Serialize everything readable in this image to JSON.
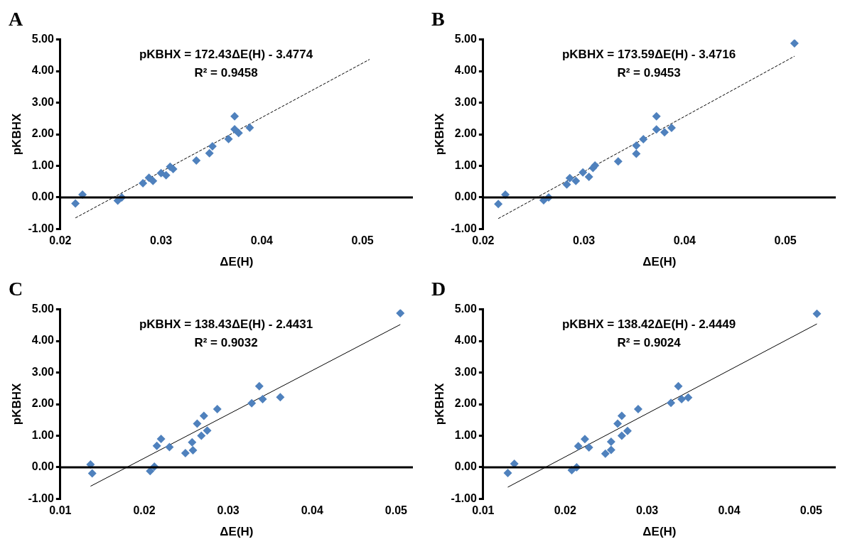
{
  "chart_data": [
    {
      "type": "scatter",
      "title": "A",
      "xlabel": "ΔE(H)",
      "ylabel": "pKBHX",
      "annotations": [
        "pKBHX = 172.43ΔE(H) - 3.4774",
        "R² = 0.9458"
      ],
      "xlim": [
        0.02,
        0.055
      ],
      "xticks": [
        0.02,
        0.03,
        0.04,
        0.05
      ],
      "ylim": [
        -1,
        5
      ],
      "yticks": [
        {
          "value": -1,
          "label": "-1.00"
        },
        {
          "value": 0,
          "label": "0.00"
        },
        {
          "value": 1,
          "label": "1.00"
        },
        {
          "value": 2,
          "label": "2.00"
        },
        {
          "value": 3,
          "label": "3.00"
        },
        {
          "value": 4,
          "label": "4.00"
        },
        {
          "value": 5,
          "label": "5.00"
        }
      ],
      "grid": false,
      "legend": false,
      "ref_lines": [
        {
          "axis": "y",
          "value": 0,
          "color": "#000000"
        }
      ],
      "series": [
        {
          "color": "#4f81bd",
          "marker": "diamond",
          "x": [
            0.0215,
            0.0222,
            0.0257,
            0.0261,
            0.0282,
            0.0288,
            0.0292,
            0.03,
            0.0305,
            0.0309,
            0.0312,
            0.0335,
            0.0348,
            0.0351,
            0.0367,
            0.0373,
            0.0373,
            0.0377,
            0.0388
          ],
          "values": [
            -0.19,
            0.09,
            -0.1,
            0.0,
            0.45,
            0.62,
            0.52,
            0.77,
            0.7,
            0.97,
            0.9,
            1.17,
            1.4,
            1.62,
            1.85,
            2.57,
            2.16,
            2.04,
            2.21
          ]
        },
        {
          "type": "line",
          "color": "#000000",
          "marker": "none",
          "line_style": "dashed",
          "x": [
            0.0215,
            0.0507
          ],
          "values": [
            -0.65,
            4.37
          ]
        }
      ]
    },
    {
      "type": "scatter",
      "title": "B",
      "xlabel": "ΔE(H)",
      "ylabel": "pKBHX",
      "annotations": [
        "pKBHX = 173.59ΔE(H) - 3.4716",
        "R² = 0.9453"
      ],
      "xlim": [
        0.02,
        0.055
      ],
      "xticks": [
        0.02,
        0.03,
        0.04,
        0.05
      ],
      "ylim": [
        -1,
        5
      ],
      "yticks": [
        {
          "value": -1,
          "label": "-1.00"
        },
        {
          "value": 0,
          "label": "0.00"
        },
        {
          "value": 1,
          "label": "1.00"
        },
        {
          "value": 2,
          "label": "2.00"
        },
        {
          "value": 3,
          "label": "3.00"
        },
        {
          "value": 4,
          "label": "4.00"
        },
        {
          "value": 5,
          "label": "5.00"
        }
      ],
      "grid": false,
      "legend": false,
      "ref_lines": [
        {
          "axis": "y",
          "value": 0,
          "color": "#000000"
        }
      ],
      "series": [
        {
          "color": "#4f81bd",
          "marker": "diamond",
          "x": [
            0.0215,
            0.0222,
            0.026,
            0.0265,
            0.0283,
            0.0286,
            0.0292,
            0.0299,
            0.0305,
            0.0309,
            0.0311,
            0.0334,
            0.0352,
            0.0352,
            0.0359,
            0.0372,
            0.0372,
            0.038,
            0.0387,
            0.0509
          ],
          "values": [
            -0.21,
            0.09,
            -0.09,
            0.0,
            0.41,
            0.61,
            0.52,
            0.79,
            0.65,
            0.93,
            1.01,
            1.14,
            1.38,
            1.64,
            1.84,
            2.57,
            2.15,
            2.06,
            2.2,
            4.88
          ]
        },
        {
          "type": "line",
          "color": "#000000",
          "marker": "none",
          "line_style": "dashed",
          "x": [
            0.0215,
            0.0509
          ],
          "values": [
            -0.67,
            4.47
          ]
        }
      ]
    },
    {
      "type": "scatter",
      "title": "C",
      "xlabel": "ΔE(H)",
      "ylabel": "pKBHX",
      "annotations": [
        "pKBHX = 138.43ΔE(H) - 2.4431",
        "R² = 0.9032"
      ],
      "xlim": [
        0.01,
        0.052
      ],
      "xticks": [
        0.01,
        0.02,
        0.03,
        0.04,
        0.05
      ],
      "ylim": [
        -1,
        5
      ],
      "yticks": [
        {
          "value": -1,
          "label": "-1.00"
        },
        {
          "value": 0,
          "label": "0.00"
        },
        {
          "value": 1,
          "label": "1.00"
        },
        {
          "value": 2,
          "label": "2.00"
        },
        {
          "value": 3,
          "label": "3.00"
        },
        {
          "value": 4,
          "label": "4.00"
        },
        {
          "value": 5,
          "label": "5.00"
        }
      ],
      "grid": false,
      "legend": false,
      "ref_lines": [
        {
          "axis": "y",
          "value": 0,
          "color": "#000000"
        }
      ],
      "series": [
        {
          "color": "#4f81bd",
          "marker": "diamond",
          "x": [
            0.0136,
            0.0138,
            0.0207,
            0.0212,
            0.0215,
            0.022,
            0.023,
            0.0249,
            0.0258,
            0.0257,
            0.0263,
            0.0268,
            0.0271,
            0.0275,
            0.0287,
            0.0328,
            0.0337,
            0.0341,
            0.0362,
            0.0505
          ],
          "values": [
            0.09,
            -0.19,
            -0.12,
            0.02,
            0.68,
            0.9,
            0.64,
            0.45,
            0.54,
            0.79,
            1.38,
            1.0,
            1.63,
            1.16,
            1.84,
            2.03,
            2.57,
            2.16,
            2.22,
            4.88
          ]
        },
        {
          "type": "line",
          "color": "#000000",
          "marker": "none",
          "line_style": "solid",
          "x": [
            0.0136,
            0.0505
          ],
          "values": [
            -0.6,
            4.52
          ]
        }
      ]
    },
    {
      "type": "scatter",
      "title": "D",
      "xlabel": "ΔE(H)",
      "ylabel": "pKBHX",
      "annotations": [
        "pKBHX = 138.42ΔE(H) - 2.4449",
        "R² = 0.9024"
      ],
      "xlim": [
        0.01,
        0.053
      ],
      "xticks": [
        0.01,
        0.02,
        0.03,
        0.04,
        0.05
      ],
      "ylim": [
        -1,
        5
      ],
      "yticks": [
        {
          "value": -1,
          "label": "-1.00"
        },
        {
          "value": 0,
          "label": "0.00"
        },
        {
          "value": 1,
          "label": "1.00"
        },
        {
          "value": 2,
          "label": "2.00"
        },
        {
          "value": 3,
          "label": "3.00"
        },
        {
          "value": 4,
          "label": "4.00"
        },
        {
          "value": 5,
          "label": "5.00"
        }
      ],
      "grid": false,
      "legend": false,
      "ref_lines": [
        {
          "axis": "y",
          "value": 0,
          "color": "#000000"
        }
      ],
      "series": [
        {
          "color": "#4f81bd",
          "marker": "diamond",
          "x": [
            0.013,
            0.0138,
            0.0208,
            0.0214,
            0.0216,
            0.0224,
            0.0229,
            0.0249,
            0.0256,
            0.0256,
            0.0264,
            0.0269,
            0.0269,
            0.0276,
            0.0289,
            0.0329,
            0.0338,
            0.0342,
            0.035,
            0.0507
          ],
          "values": [
            -0.18,
            0.11,
            -0.09,
            0.0,
            0.67,
            0.89,
            0.63,
            0.43,
            0.55,
            0.81,
            1.38,
            1.0,
            1.63,
            1.15,
            1.84,
            2.04,
            2.57,
            2.16,
            2.21,
            4.86
          ]
        },
        {
          "type": "line",
          "color": "#000000",
          "marker": "none",
          "line_style": "solid",
          "x": [
            0.013,
            0.0507
          ],
          "values": [
            -0.63,
            4.54
          ]
        }
      ]
    }
  ]
}
